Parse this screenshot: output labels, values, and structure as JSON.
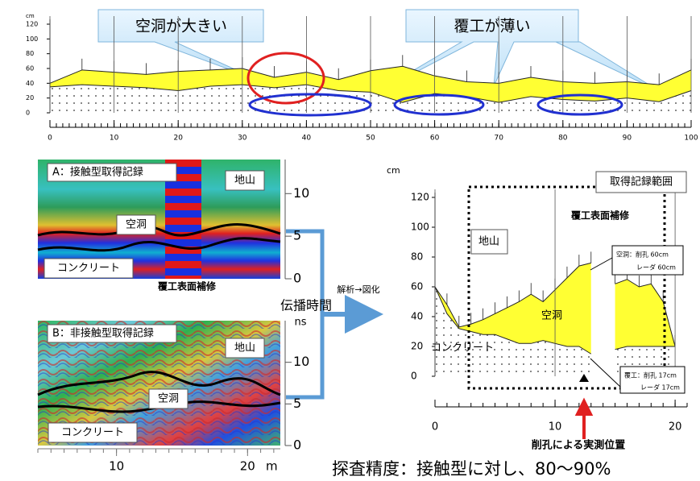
{
  "chart_data": [
    {
      "type": "area",
      "ylabel": "cm",
      "x": [
        0,
        5,
        10,
        15,
        20,
        25,
        30,
        35,
        40,
        45,
        50,
        55,
        60,
        65,
        70,
        75,
        80,
        85,
        90,
        95,
        100
      ],
      "series": [
        {
          "color": "#ffff33",
          "values": [
            40,
            58,
            55,
            52,
            56,
            58,
            60,
            48,
            55,
            45,
            57,
            63,
            50,
            42,
            40,
            48,
            42,
            40,
            42,
            38,
            58
          ]
        },
        {
          "color": "#000000",
          "values": [
            35,
            38,
            36,
            34,
            30,
            36,
            38,
            34,
            38,
            30,
            28,
            14,
            26,
            22,
            14,
            22,
            18,
            16,
            20,
            15,
            30
          ]
        }
      ],
      "xlim": [
        0,
        100
      ],
      "xticks": [
        0,
        10,
        20,
        30,
        40,
        50,
        60,
        70,
        80,
        90,
        100
      ],
      "ylim": [
        0,
        120
      ],
      "yticks": [
        0,
        20,
        40,
        60,
        80,
        100,
        120
      ],
      "grid": true
    },
    {
      "type": "radar-image",
      "title": "A：接触型取得記録",
      "labels": [
        "地山",
        "空洞",
        "コンクリート"
      ],
      "annotation": "覆工表面補修",
      "ylim": [
        0,
        14
      ],
      "yticks": [
        0,
        5,
        10
      ]
    },
    {
      "type": "radar-image",
      "title": "B：非接触型取得記録",
      "labels": [
        "地山",
        "空洞",
        "コンクリート"
      ],
      "ylim": [
        0,
        15
      ],
      "yticks": [
        0,
        5,
        10
      ],
      "xlim": [
        4,
        22.5
      ],
      "xticks": [
        10,
        20
      ],
      "xlabel": "m"
    },
    {
      "type": "area",
      "ylabel": "cm",
      "title": "覆工表面補修",
      "x": [
        0,
        1,
        2,
        3,
        4,
        5,
        6,
        7,
        8,
        9,
        10,
        11,
        12,
        13,
        14,
        15,
        16,
        17,
        18,
        19,
        20
      ],
      "series": [
        {
          "color": "#ffff33",
          "values": [
            60,
            48,
            33,
            35,
            38,
            42,
            46,
            50,
            55,
            50,
            58,
            66,
            74,
            76,
            null,
            62,
            65,
            60,
            62,
            50,
            20
          ]
        },
        {
          "color": "#000000",
          "values": [
            60,
            42,
            32,
            30,
            28,
            28,
            25,
            22,
            22,
            24,
            22,
            20,
            20,
            15,
            null,
            18,
            20,
            20,
            20,
            20,
            20
          ]
        }
      ],
      "xlim": [
        0,
        21
      ],
      "xticks": [
        0,
        10,
        20
      ],
      "ylim": [
        0,
        120
      ],
      "yticks": [
        0,
        20,
        40,
        60,
        80,
        100,
        120
      ],
      "grid": true,
      "labels": [
        "地山",
        "空洞",
        "コンクリート",
        "取得記録範囲"
      ],
      "notes": [
        "空洞：削孔 60cm",
        "レーダ 60cm",
        "覆工：削孔 17cm",
        "レーダ 17cm"
      ],
      "marker_label": "削孔による実測位置"
    }
  ],
  "callouts": [
    "空洞が大きい",
    "覆工が薄い"
  ],
  "axis_title": "伝播時間",
  "axis_unit": "ns",
  "arrow_label": "解析→図化",
  "caption": "探査精度：接触型に対し、80～90%"
}
